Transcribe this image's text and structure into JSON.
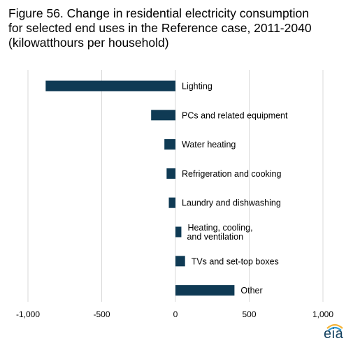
{
  "chart_data": {
    "type": "bar",
    "orientation": "horizontal",
    "title": "Figure 56. Change in residential electricity consumption\nfor selected end uses in the Reference case, 2011-2040\n(kilowatthours per household)",
    "categories": [
      [
        "Lighting"
      ],
      [
        "PCs and related equipment"
      ],
      [
        "Water heating"
      ],
      [
        "Refrigeration and cooking"
      ],
      [
        "Laundry and dishwashing"
      ],
      [
        "Heating, cooling,",
        "and ventilation"
      ],
      [
        "TVs and set-top boxes"
      ],
      [
        "Other"
      ]
    ],
    "values": [
      -880,
      -165,
      -75,
      -60,
      -45,
      40,
      65,
      400
    ],
    "xlim": [
      -1000,
      1000
    ],
    "xticks": [
      -1000,
      -500,
      0,
      500,
      1000
    ],
    "xtick_labels": [
      "-1,000",
      "-500",
      "0",
      "500",
      "1,000"
    ],
    "grid": "vertical",
    "bar_color": "#0f3a54",
    "grid_color": "#d9d9d9"
  },
  "logo": {
    "text": "eia"
  }
}
